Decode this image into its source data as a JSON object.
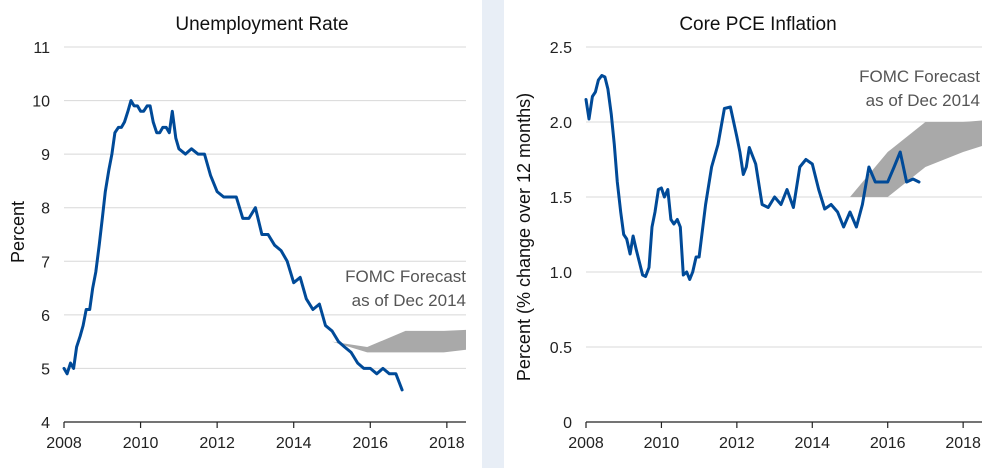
{
  "chart_data": [
    {
      "type": "line",
      "title": "Unemployment Rate",
      "xlabel": "",
      "ylabel": "Percent",
      "xlim": [
        2008,
        2018.5
      ],
      "ylim": [
        4,
        11
      ],
      "xticks": [
        2008,
        2010,
        2012,
        2014,
        2016,
        2018
      ],
      "xtick_labels": [
        "2008",
        "2010",
        "2012",
        "2014",
        "2016",
        "2018"
      ],
      "yticks": [
        4,
        5,
        6,
        7,
        8,
        9,
        10,
        11
      ],
      "ytick_labels": [
        "4",
        "5",
        "6",
        "7",
        "8",
        "9",
        "10",
        "11"
      ],
      "grid": "horizontal",
      "series": [
        {
          "name": "Unemployment Rate",
          "color": "#004a98",
          "x": [
            2008.0,
            2008.08,
            2008.17,
            2008.25,
            2008.33,
            2008.42,
            2008.5,
            2008.58,
            2008.67,
            2008.75,
            2008.83,
            2008.92,
            2009.0,
            2009.08,
            2009.17,
            2009.25,
            2009.33,
            2009.42,
            2009.5,
            2009.58,
            2009.67,
            2009.75,
            2009.83,
            2009.92,
            2010.0,
            2010.08,
            2010.17,
            2010.25,
            2010.33,
            2010.42,
            2010.5,
            2010.58,
            2010.67,
            2010.75,
            2010.83,
            2010.92,
            2011.0,
            2011.17,
            2011.33,
            2011.5,
            2011.67,
            2011.83,
            2012.0,
            2012.17,
            2012.33,
            2012.5,
            2012.67,
            2012.83,
            2013.0,
            2013.17,
            2013.33,
            2013.5,
            2013.67,
            2013.83,
            2014.0,
            2014.17,
            2014.33,
            2014.5,
            2014.67,
            2014.83,
            2015.0,
            2015.17,
            2015.33,
            2015.5,
            2015.67,
            2015.83,
            2016.0,
            2016.17,
            2016.33,
            2016.5,
            2016.67,
            2016.83
          ],
          "y": [
            5.0,
            4.9,
            5.1,
            5.0,
            5.4,
            5.6,
            5.8,
            6.1,
            6.1,
            6.5,
            6.8,
            7.3,
            7.8,
            8.3,
            8.7,
            9.0,
            9.4,
            9.5,
            9.5,
            9.6,
            9.8,
            10.0,
            9.9,
            9.9,
            9.8,
            9.8,
            9.9,
            9.9,
            9.6,
            9.4,
            9.4,
            9.5,
            9.5,
            9.4,
            9.8,
            9.3,
            9.1,
            9.0,
            9.1,
            9.0,
            9.0,
            8.6,
            8.3,
            8.2,
            8.2,
            8.2,
            7.8,
            7.8,
            8.0,
            7.5,
            7.5,
            7.3,
            7.2,
            7.0,
            6.6,
            6.7,
            6.3,
            6.1,
            6.2,
            5.8,
            5.7,
            5.5,
            5.4,
            5.3,
            5.1,
            5.0,
            5.0,
            4.9,
            5.0,
            4.9,
            4.9,
            4.6
          ]
        }
      ],
      "forecast_band": {
        "x": [
          2015.0,
          2015.92,
          2016.92,
          2017.92,
          2018.5
        ],
        "low": [
          5.5,
          5.3,
          5.3,
          5.3,
          5.35
        ],
        "high": [
          5.5,
          5.4,
          5.7,
          5.7,
          5.72
        ],
        "color": "#a9a9a9"
      },
      "annotation": [
        "FOMC Forecast",
        "as of Dec 2014"
      ]
    },
    {
      "type": "line",
      "title": "Core PCE Inflation",
      "xlabel": "",
      "ylabel": "Percent (% change over 12 months)",
      "xlim": [
        2008,
        2018.5
      ],
      "ylim": [
        0,
        2.5
      ],
      "xticks": [
        2008,
        2010,
        2012,
        2014,
        2016,
        2018
      ],
      "xtick_labels": [
        "2008",
        "2010",
        "2012",
        "2014",
        "2016",
        "2018"
      ],
      "yticks": [
        0,
        0.5,
        1.0,
        1.5,
        2.0,
        2.5
      ],
      "ytick_labels": [
        "0",
        "0.5",
        "1.0",
        "1.5",
        "2.0",
        "2.5"
      ],
      "grid": "horizontal",
      "series": [
        {
          "name": "Core PCE Inflation",
          "color": "#004a98",
          "x": [
            2008.0,
            2008.08,
            2008.17,
            2008.25,
            2008.33,
            2008.42,
            2008.5,
            2008.58,
            2008.67,
            2008.75,
            2008.83,
            2008.92,
            2009.0,
            2009.08,
            2009.17,
            2009.25,
            2009.33,
            2009.42,
            2009.5,
            2009.58,
            2009.67,
            2009.75,
            2009.83,
            2009.92,
            2010.0,
            2010.08,
            2010.17,
            2010.25,
            2010.33,
            2010.42,
            2010.5,
            2010.58,
            2010.67,
            2010.75,
            2010.83,
            2010.92,
            2011.0,
            2011.17,
            2011.33,
            2011.5,
            2011.67,
            2011.83,
            2012.0,
            2012.08,
            2012.17,
            2012.25,
            2012.33,
            2012.5,
            2012.67,
            2012.83,
            2013.0,
            2013.17,
            2013.33,
            2013.5,
            2013.67,
            2013.83,
            2014.0,
            2014.17,
            2014.33,
            2014.5,
            2014.67,
            2014.83,
            2015.0,
            2015.17,
            2015.33,
            2015.5,
            2015.67,
            2015.83,
            2016.0,
            2016.17,
            2016.33,
            2016.5,
            2016.67,
            2016.83
          ],
          "y": [
            2.15,
            2.02,
            2.17,
            2.2,
            2.28,
            2.31,
            2.3,
            2.22,
            2.05,
            1.85,
            1.6,
            1.4,
            1.25,
            1.22,
            1.12,
            1.24,
            1.15,
            1.06,
            0.98,
            0.97,
            1.03,
            1.3,
            1.4,
            1.55,
            1.56,
            1.5,
            1.55,
            1.35,
            1.32,
            1.35,
            1.3,
            0.98,
            1.0,
            0.95,
            1.0,
            1.1,
            1.1,
            1.45,
            1.7,
            1.85,
            2.09,
            2.1,
            1.9,
            1.8,
            1.65,
            1.7,
            1.83,
            1.72,
            1.45,
            1.43,
            1.5,
            1.45,
            1.55,
            1.43,
            1.7,
            1.75,
            1.72,
            1.55,
            1.42,
            1.45,
            1.4,
            1.3,
            1.4,
            1.3,
            1.45,
            1.7,
            1.6,
            1.6,
            1.6,
            1.7,
            1.8,
            1.6,
            1.62,
            1.6
          ]
        }
      ],
      "forecast_band": {
        "x": [
          2015.0,
          2016.0,
          2017.0,
          2018.0,
          2018.5
        ],
        "low": [
          1.5,
          1.5,
          1.7,
          1.8,
          1.84
        ],
        "high": [
          1.5,
          1.8,
          2.0,
          2.0,
          2.01
        ],
        "color": "#a9a9a9"
      },
      "annotation": [
        "FOMC Forecast",
        "as of Dec 2014"
      ]
    }
  ]
}
